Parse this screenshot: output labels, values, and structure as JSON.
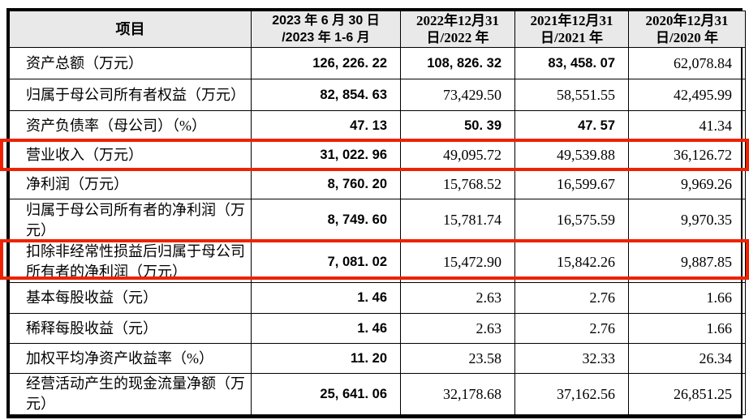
{
  "table": {
    "columns": [
      "项目",
      "2023 年 6 月 30 日\n/2023 年 1-6 月",
      "2022年12月31\n日/2022 年",
      "2021年12月31\n日/2021 年",
      "2020年12月31\n日/2020 年"
    ],
    "rows": [
      {
        "label": "资产总额（万元）",
        "values": [
          "126, 226. 22",
          "108, 826. 32",
          "83, 458. 07",
          "62,078.84"
        ],
        "bold": [
          true,
          true,
          true,
          false
        ],
        "highlight": false
      },
      {
        "label": "归属于母公司所有者权益（万元）",
        "values": [
          "82, 854. 63",
          "73,429.50",
          "58,551.55",
          "42,495.99"
        ],
        "bold": [
          true,
          false,
          false,
          false
        ],
        "highlight": false
      },
      {
        "label": "资产负债率（母公司）（%）",
        "values": [
          "47. 13",
          "50. 39",
          "47. 57",
          "41.34"
        ],
        "bold": [
          true,
          true,
          true,
          false
        ],
        "highlight": false
      },
      {
        "label": "营业收入（万元）",
        "values": [
          "31, 022. 96",
          "49,095.72",
          "49,539.88",
          "36,126.72"
        ],
        "bold": [
          true,
          false,
          false,
          false
        ],
        "highlight": true
      },
      {
        "label": "净利润（万元）",
        "values": [
          "8, 760. 20",
          "15,768.52",
          "16,599.67",
          "9,969.26"
        ],
        "bold": [
          true,
          false,
          false,
          false
        ],
        "highlight": false
      },
      {
        "label": "归属于母公司所有者的净利润（万元）",
        "values": [
          "8, 749. 60",
          "15,781.74",
          "16,575.59",
          "9,970.35"
        ],
        "bold": [
          true,
          false,
          false,
          false
        ],
        "highlight": false
      },
      {
        "label": "扣除非经常性损益后归属于母公司所有者的净利润（万元）",
        "values": [
          "7, 081. 02",
          "15,472.90",
          "15,842.26",
          "9,887.85"
        ],
        "bold": [
          true,
          false,
          false,
          false
        ],
        "highlight": true
      },
      {
        "label": "基本每股收益（元）",
        "values": [
          "1. 46",
          "2.63",
          "2.76",
          "1.66"
        ],
        "bold": [
          true,
          false,
          false,
          false
        ],
        "highlight": false
      },
      {
        "label": "稀释每股收益（元）",
        "values": [
          "1. 46",
          "2.63",
          "2.76",
          "1.66"
        ],
        "bold": [
          true,
          false,
          false,
          false
        ],
        "highlight": false
      },
      {
        "label": "加权平均净资产收益率（%）",
        "values": [
          "11. 20",
          "23.58",
          "32.33",
          "26.34"
        ],
        "bold": [
          true,
          false,
          false,
          false
        ],
        "highlight": false
      },
      {
        "label": "经营活动产生的现金流量净额（万元）",
        "values": [
          "25, 641. 06",
          "32,178.68",
          "37,162.56",
          "26,851.25"
        ],
        "bold": [
          true,
          false,
          false,
          false
        ],
        "highlight": false
      }
    ]
  },
  "colors": {
    "highlight_border": "#ee2200",
    "header_bg": "#e9e9e9",
    "grid_border": "#000000",
    "text": "#000000"
  }
}
